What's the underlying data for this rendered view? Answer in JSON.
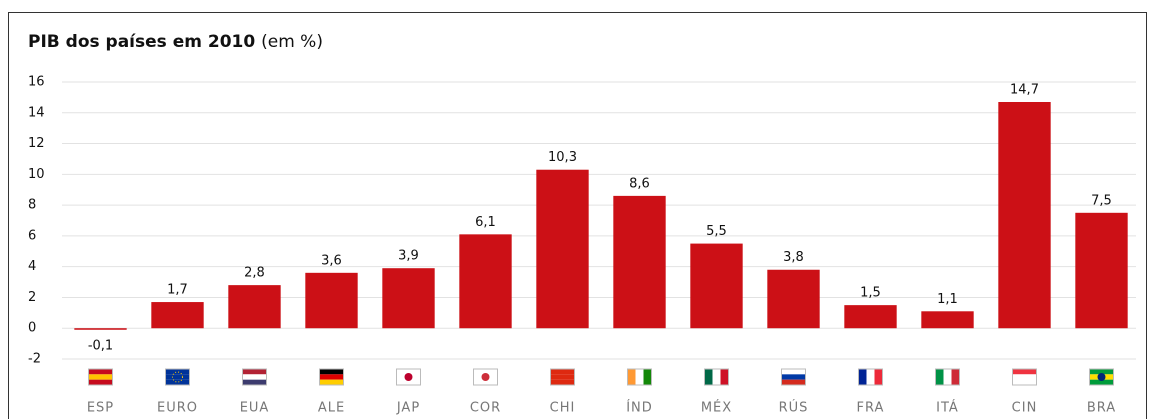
{
  "chart_data": {
    "type": "bar",
    "title": "PIB dos países em 2010",
    "title_suffix": "(em %)",
    "categories": [
      "ESP",
      "EURO",
      "EUA",
      "ALE",
      "JAP",
      "COR",
      "CHI",
      "ÍND",
      "MÉX",
      "RÚS",
      "FRA",
      "ITÁ",
      "CIN",
      "BRA"
    ],
    "values": [
      -0.1,
      1.7,
      2.8,
      3.6,
      3.9,
      6.1,
      10.3,
      8.6,
      5.5,
      3.8,
      1.5,
      1.1,
      14.7,
      7.5
    ],
    "value_labels": [
      "-0,1",
      "1,7",
      "2,8",
      "3,6",
      "3,9",
      "6,1",
      "10,3",
      "8,6",
      "5,5",
      "3,8",
      "1,5",
      "1,1",
      "14,7",
      "7,5"
    ],
    "color": "#cc1016",
    "ylim": [
      -2,
      16
    ],
    "yticks": [
      -2,
      0,
      2,
      4,
      6,
      8,
      10,
      12,
      14,
      16
    ],
    "grid": true
  }
}
